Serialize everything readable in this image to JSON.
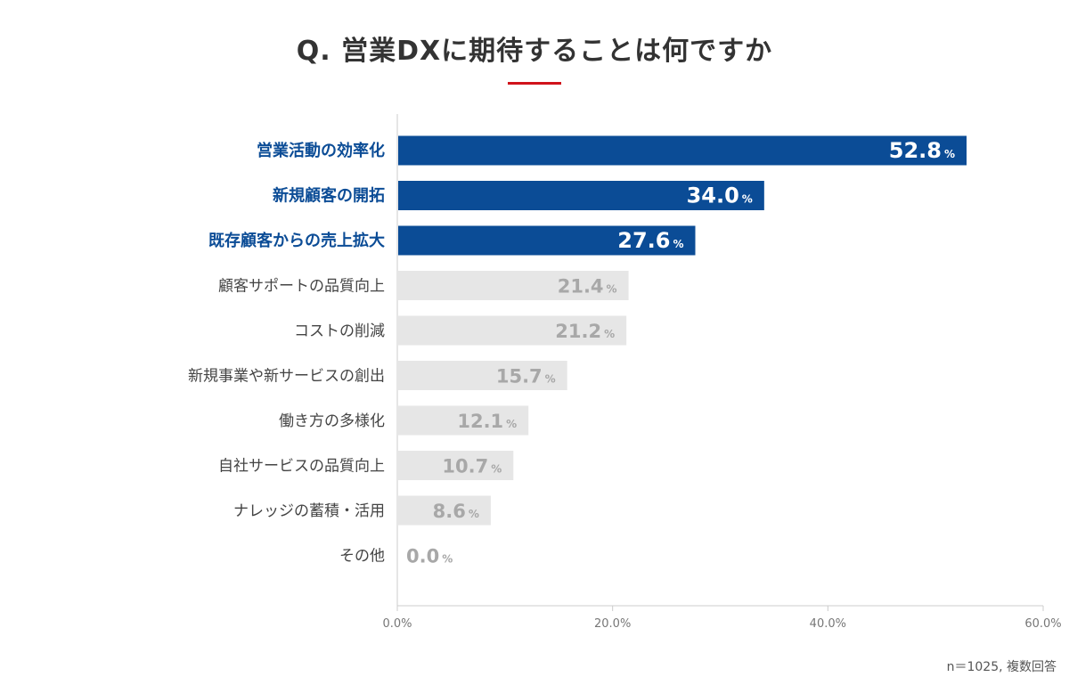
{
  "title": "Q. 営業DXに期待することは何ですか",
  "note": "n＝1025, 複数回答",
  "colors": {
    "highlight": "#0b4c96",
    "muted_bar": "#e6e6e6",
    "muted_value": "#a8a8a8",
    "label": "#444444",
    "accent_rule": "#d0121b",
    "axis": "#cccccc",
    "tick": "#777777"
  },
  "chart_data": {
    "type": "bar",
    "orientation": "horizontal",
    "title": "Q. 営業DXに期待することは何ですか",
    "xlabel": "",
    "ylabel": "",
    "xlim": [
      0,
      60
    ],
    "x_ticks": [
      "0.0%",
      "20.0%",
      "40.0%",
      "60.0%"
    ],
    "x_tick_values": [
      0,
      20,
      40,
      60
    ],
    "value_suffix": "%",
    "categories": [
      "営業活動の効率化",
      "新規顧客の開拓",
      "既存顧客からの売上拡大",
      "顧客サポートの品質向上",
      "コストの削減",
      "新規事業や新サービスの創出",
      "働き方の多様化",
      "自社サービスの品質向上",
      "ナレッジの蓄積・活用",
      "その他"
    ],
    "values": [
      52.8,
      34.0,
      27.6,
      21.4,
      21.2,
      15.7,
      12.1,
      10.7,
      8.6,
      0.0
    ],
    "value_labels": [
      "52.8",
      "34.0",
      "27.6",
      "21.4",
      "21.2",
      "15.7",
      "12.1",
      "10.7",
      "8.6",
      "0.0"
    ],
    "highlighted": [
      true,
      true,
      true,
      false,
      false,
      false,
      false,
      false,
      false,
      false
    ],
    "grid": false
  }
}
